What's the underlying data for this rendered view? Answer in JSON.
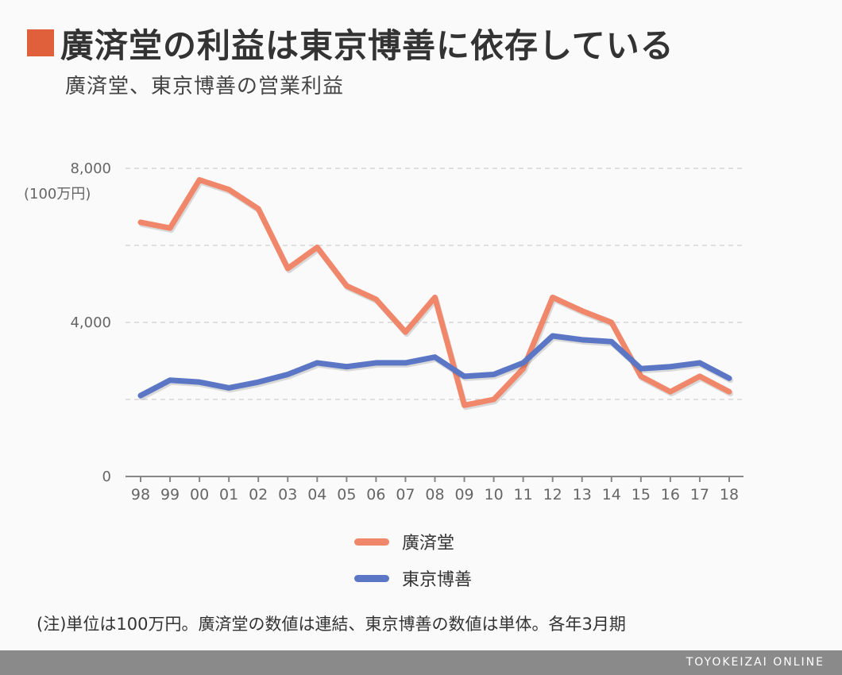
{
  "header": {
    "title": "廣済堂の利益は東京博善に依存している",
    "subtitle": "廣済堂、東京博善の営業利益",
    "accent_color": "#e0603c"
  },
  "chart_data": {
    "type": "line",
    "title": "廣済堂の利益は東京博善に依存している",
    "subtitle": "廣済堂、東京博善の営業利益",
    "xlabel": "",
    "ylabel": "(100万円)",
    "categories": [
      "98",
      "99",
      "00",
      "01",
      "02",
      "03",
      "04",
      "05",
      "06",
      "07",
      "08",
      "09",
      "10",
      "11",
      "12",
      "13",
      "14",
      "15",
      "16",
      "17",
      "18"
    ],
    "ylim": [
      0,
      8000
    ],
    "yticks": [
      0,
      4000,
      8000
    ],
    "ytick_labels": [
      "0",
      "4,000",
      "8,000"
    ],
    "grid": true,
    "legend_position": "bottom",
    "series": [
      {
        "name": "廣済堂",
        "color": "#f0876a",
        "values": [
          6600,
          6450,
          7700,
          7450,
          6950,
          5400,
          5950,
          4950,
          4600,
          3750,
          4650,
          1850,
          2000,
          2800,
          4650,
          4300,
          4000,
          2600,
          2200,
          2600,
          2200
        ]
      },
      {
        "name": "東京博善",
        "color": "#5b76c4",
        "values": [
          2100,
          2500,
          2450,
          2300,
          2450,
          2650,
          2950,
          2850,
          2950,
          2950,
          3100,
          2600,
          2650,
          2950,
          3650,
          3550,
          3500,
          2800,
          2850,
          2950,
          2550
        ]
      }
    ]
  },
  "note": "(注)単位は100万円。廣済堂の数値は連結、東京博善の数値は単体。各年3月期",
  "footer": {
    "brand": "TOYOKEIZAI ONLINE"
  }
}
